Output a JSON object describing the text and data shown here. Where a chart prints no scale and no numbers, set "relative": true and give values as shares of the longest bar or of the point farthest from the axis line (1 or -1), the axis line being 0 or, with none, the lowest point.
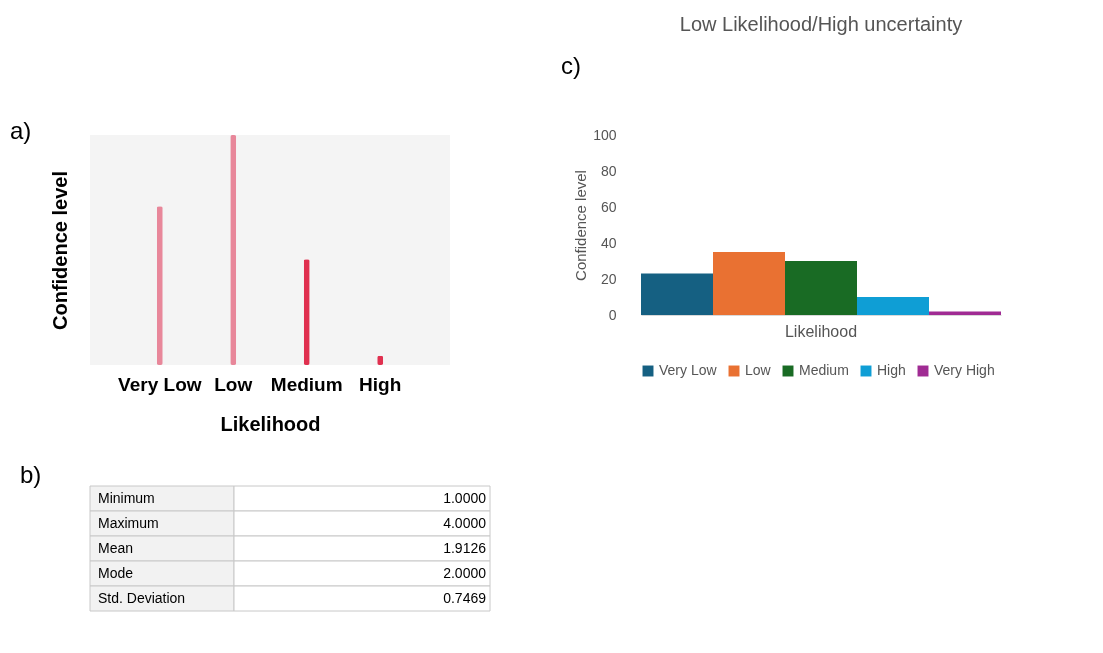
{
  "chart_data": [
    {
      "type": "bar",
      "relative": true,
      "categories": [
        "Very Low",
        "Low",
        "Medium",
        "High"
      ],
      "values": [
        0.69,
        1,
        0.46,
        0.04
      ],
      "colors": [
        "#e8879a",
        "#e8879a",
        "#e0304f",
        "#e0304f"
      ],
      "xlabel": "Likelihood",
      "ylabel": "Confidence level",
      "annotations": [
        "a)"
      ]
    },
    {
      "type": "other",
      "categories": [
        "Minimum",
        "Maximum",
        "Mean",
        "Mode",
        "Std. Deviation"
      ],
      "values": [
        1.0,
        4.0,
        1.9126,
        2.0,
        0.7469
      ],
      "value_labels": [
        "1.0000",
        "4.0000",
        "1.9126",
        "2.0000",
        "0.7469"
      ],
      "annotations": [
        "b)"
      ]
    },
    {
      "type": "bar",
      "title": "Low Likelihood/High uncertainty",
      "categories": [
        "Likelihood"
      ],
      "ylabel": "Confidence level",
      "ylim": [
        0,
        100
      ],
      "yticks": [
        0,
        20,
        40,
        60,
        80,
        100
      ],
      "grid": false,
      "legend": "bottom",
      "series": [
        {
          "name": "Very Low",
          "color": "#156082",
          "values": [
            23
          ]
        },
        {
          "name": "Low",
          "color": "#e97132",
          "values": [
            35
          ]
        },
        {
          "name": "Medium",
          "color": "#196b24",
          "values": [
            30
          ]
        },
        {
          "name": "High",
          "color": "#0f9ed5",
          "values": [
            10
          ]
        },
        {
          "name": "Very High",
          "color": "#a02b93",
          "values": [
            2
          ]
        }
      ],
      "annotations": [
        "c)"
      ]
    }
  ]
}
